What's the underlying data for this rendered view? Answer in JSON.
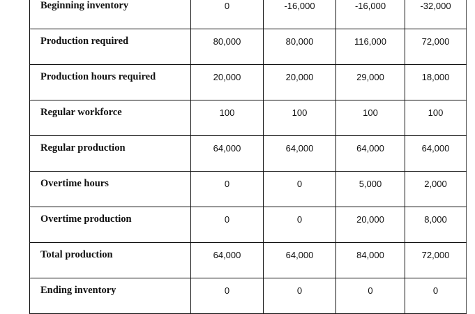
{
  "table": {
    "rows": [
      {
        "label": "Beginning inventory",
        "values": [
          "0",
          "-16,000",
          "-16,000",
          "-32,000"
        ]
      },
      {
        "label": "Production required",
        "values": [
          "80,000",
          "80,000",
          "116,000",
          "72,000"
        ]
      },
      {
        "label": "Production hours required",
        "values": [
          "20,000",
          "20,000",
          "29,000",
          "18,000"
        ]
      },
      {
        "label": "Regular workforce",
        "values": [
          "100",
          "100",
          "100",
          "100"
        ]
      },
      {
        "label": "Regular production",
        "values": [
          "64,000",
          "64,000",
          "64,000",
          "64,000"
        ]
      },
      {
        "label": "Overtime hours",
        "values": [
          "0",
          "0",
          "5,000",
          "2,000"
        ]
      },
      {
        "label": "Overtime production",
        "values": [
          "0",
          "0",
          "20,000",
          "8,000"
        ]
      },
      {
        "label": "Total production",
        "values": [
          "64,000",
          "64,000",
          "84,000",
          "72,000"
        ]
      },
      {
        "label": "Ending inventory",
        "values": [
          "0",
          "0",
          "0",
          "0"
        ]
      }
    ]
  }
}
